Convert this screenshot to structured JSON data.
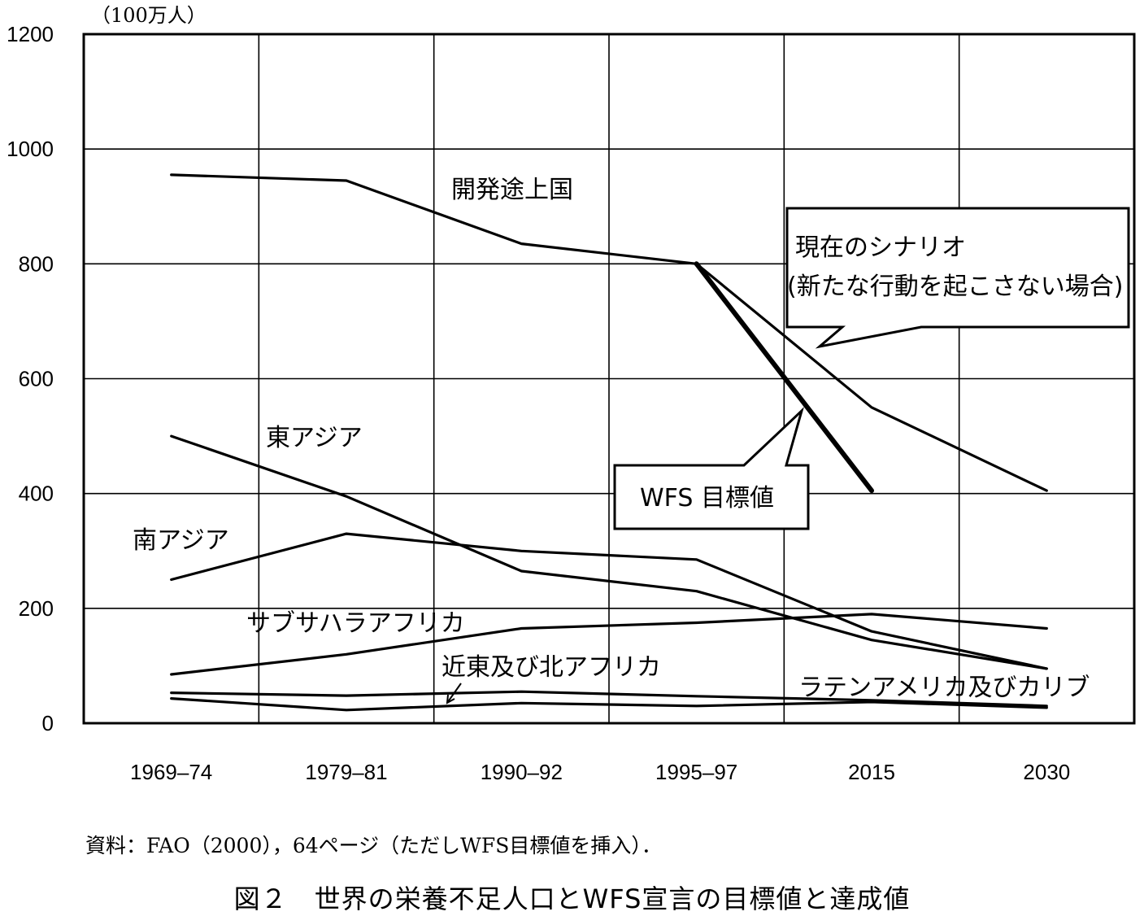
{
  "chart_data": {
    "type": "line",
    "unit_label": "（100万人）",
    "categories": [
      "1969–74",
      "1979–81",
      "1990–92",
      "1995–97",
      "2015",
      "2030"
    ],
    "ylim": [
      0,
      1200
    ],
    "yticks": [
      "0",
      "200",
      "400",
      "600",
      "800",
      "1000",
      "1200"
    ],
    "grid": true,
    "series": [
      {
        "name": "開発途上国",
        "values": [
          955,
          945,
          835,
          800,
          null,
          null
        ]
      },
      {
        "name": "現在のシナリオ(新たな行動を起こさない場合)",
        "values": [
          null,
          null,
          null,
          800,
          550,
          405
        ]
      },
      {
        "name": "WFS 目標値",
        "values": [
          null,
          null,
          null,
          800,
          405,
          null
        ],
        "emphasis": "bold"
      },
      {
        "name": "東アジア",
        "values": [
          500,
          395,
          265,
          230,
          145,
          95
        ]
      },
      {
        "name": "南アジア",
        "values": [
          250,
          330,
          300,
          285,
          160,
          95
        ]
      },
      {
        "name": "サブサハラアフリカ",
        "values": [
          85,
          120,
          165,
          175,
          190,
          165
        ]
      },
      {
        "name": "近東及び北アフリカ",
        "values": [
          43,
          23,
          35,
          30,
          37,
          27
        ]
      },
      {
        "name": "ラテンアメリカ及びカリブ",
        "values": [
          53,
          48,
          55,
          47,
          40,
          30
        ]
      }
    ]
  },
  "note": "資料：FAO（2000），64ページ（ただしWFS目標値を挿入）．",
  "figure_title": "図２　世界の栄養不足人口とWFS宣言の目標値と達成値"
}
